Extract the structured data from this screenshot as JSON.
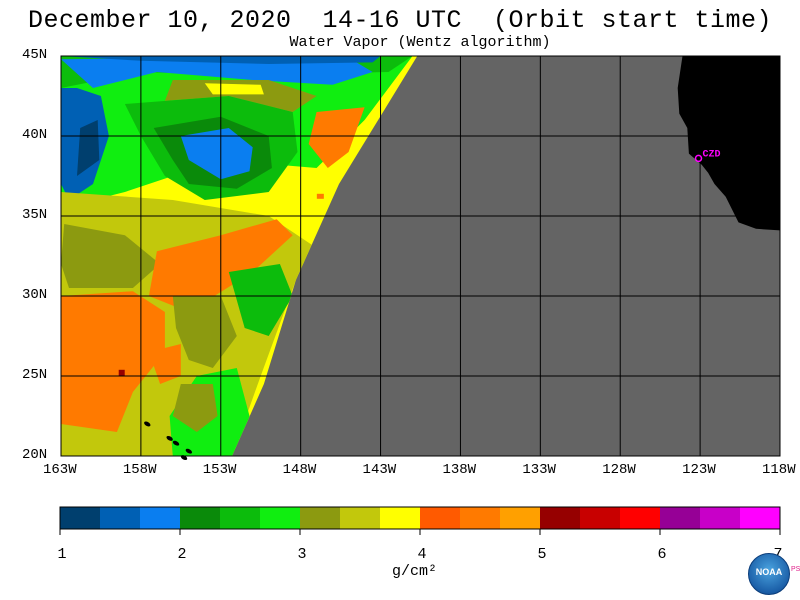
{
  "header": {
    "title": "December 10, 2020  14-16 UTC  (Orbit start time)",
    "subtitle": "Water Vapor (Wentz algorithm)"
  },
  "map": {
    "lat_labels": [
      "45N",
      "40N",
      "35N",
      "30N",
      "25N",
      "20N"
    ],
    "lon_labels": [
      "163W",
      "158W",
      "153W",
      "148W",
      "143W",
      "138W",
      "133W",
      "128W",
      "123W",
      "118W"
    ],
    "lat_range": [
      20,
      45
    ],
    "lon_range": [
      -163,
      -118
    ],
    "station_label": "CZD",
    "colors": {
      "land": "#000000",
      "no_data": "#646464",
      "grid": "#000000",
      "station": "#ff00ff"
    }
  },
  "colorbar": {
    "tick_labels": [
      "1",
      "2",
      "3",
      "4",
      "5",
      "6",
      "7"
    ],
    "unit": "g/cm²",
    "colors": [
      "#003f6e",
      "#0060b4",
      "#0a7ef0",
      "#0a8a0a",
      "#0cbc0c",
      "#10ee10",
      "#8c9a10",
      "#c2c80c",
      "#ffff00",
      "#ff5a00",
      "#ff7a00",
      "#ffa000",
      "#960000",
      "#c80000",
      "#ff0000",
      "#960096",
      "#c800c8",
      "#ff00ff"
    ]
  },
  "logo": {
    "text": "NOAA",
    "side_text": "PSL"
  }
}
